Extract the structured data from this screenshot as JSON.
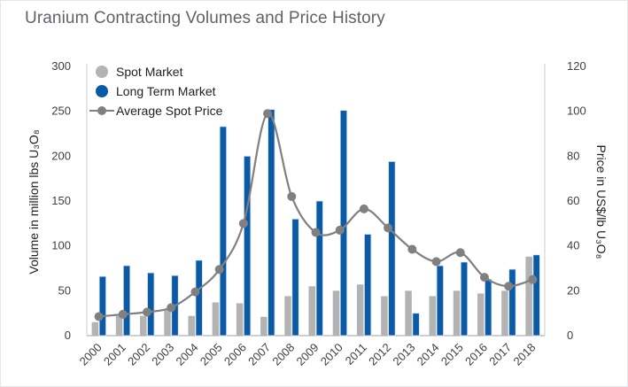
{
  "chart_data": {
    "type": "bar",
    "title": "Uranium Contracting Volumes and Price History",
    "categories": [
      "2000",
      "2001",
      "2002",
      "2003",
      "2004",
      "2005",
      "2006",
      "2007",
      "2008",
      "2009",
      "2010",
      "2011",
      "2012",
      "2013",
      "2014",
      "2015",
      "2016",
      "2017",
      "2018"
    ],
    "series": [
      {
        "name": "Spot Market",
        "type": "bar",
        "axis": "left",
        "color": "#b3b3b3",
        "values": [
          15,
          22,
          22,
          29,
          22,
          37,
          36,
          21,
          44,
          55,
          50,
          57,
          44,
          50,
          44,
          50,
          47,
          50,
          88
        ]
      },
      {
        "name": "Long Term Market",
        "type": "bar",
        "axis": "left",
        "color": "#0b5aa6",
        "values": [
          66,
          78,
          70,
          67,
          84,
          233,
          200,
          252,
          130,
          150,
          251,
          113,
          194,
          25,
          78,
          82,
          63,
          74,
          90
        ]
      },
      {
        "name": "Average Spot Price",
        "type": "line",
        "axis": "right",
        "color": "#808080",
        "values": [
          8.5,
          9.5,
          10.5,
          12.5,
          19.5,
          29.5,
          50,
          99,
          62,
          46,
          47,
          56.5,
          48,
          38.5,
          33,
          37,
          26,
          22,
          25
        ]
      }
    ],
    "ylabel_left": "Volume in million lbs U₃O₈",
    "ylabel_right": "Price in US$/lb U₃O₈",
    "ylim_left": [
      0,
      300
    ],
    "ylim_right": [
      0,
      120
    ],
    "yticks_left": [
      "0",
      "50",
      "100",
      "150",
      "200",
      "250",
      "300"
    ],
    "yticks_right": [
      "0",
      "20",
      "40",
      "60",
      "80",
      "100",
      "120"
    ],
    "legend_position": "top-left",
    "grid": false
  }
}
